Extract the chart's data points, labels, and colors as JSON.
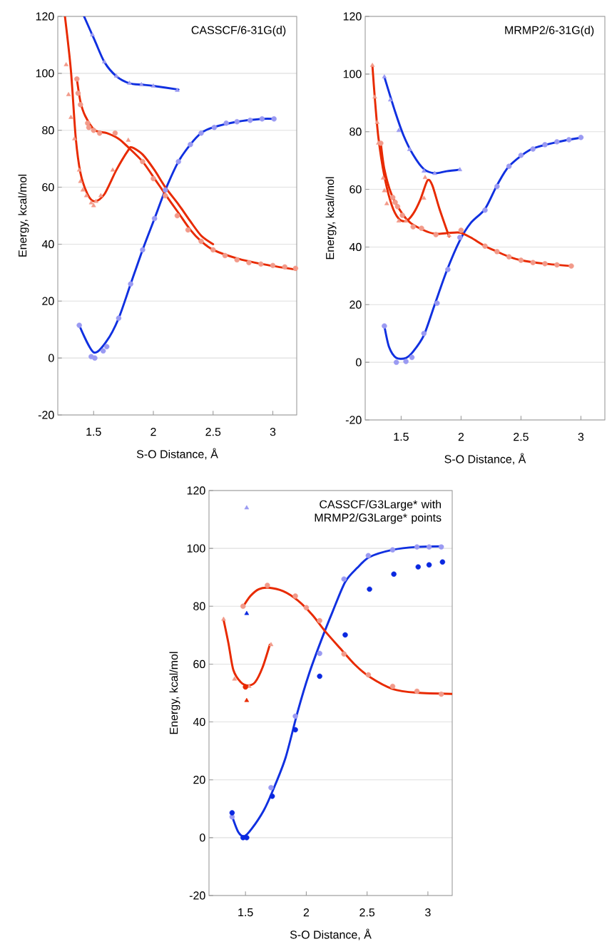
{
  "chart_data": [
    {
      "type": "line",
      "title": "CASSCF/6-31G(d)",
      "xlabel": "S-O Distance, Å",
      "ylabel": "Energy, kcal/mol",
      "xlim": [
        1.2,
        3.2
      ],
      "ylim": [
        -20,
        120
      ],
      "xticks": [
        1.5,
        2,
        2.5,
        3
      ],
      "yticks": [
        -20,
        0,
        20,
        40,
        60,
        80,
        100,
        120
      ],
      "grid": "y",
      "marker": "none",
      "series": [
        {
          "color": "#1030e0",
          "x": [
            1.42,
            1.51,
            1.59,
            1.69,
            1.8,
            1.91,
            2.01,
            2.21
          ],
          "values": [
            120,
            111.5,
            104,
            99,
            96.5,
            96,
            95.5,
            94.3
          ]
        },
        {
          "type": "scatter",
          "marker": "triangle",
          "color": "#9a9af2",
          "x": [
            1.49,
            1.59,
            1.69,
            1.8,
            1.9,
            2.0,
            2.2
          ],
          "values": [
            113.5,
            104,
            99,
            96.5,
            96,
            95.5,
            94
          ]
        },
        {
          "color": "#1030e0",
          "x": [
            1.38,
            1.5,
            1.61,
            1.71,
            1.81,
            1.91,
            2.01,
            2.1,
            2.21,
            2.31,
            2.4,
            2.5,
            2.7,
            2.91,
            3.01
          ],
          "values": [
            11.5,
            2,
            6,
            14,
            26,
            38,
            49,
            59,
            69,
            75,
            79,
            81,
            83,
            84,
            84
          ]
        },
        {
          "type": "scatter",
          "marker": "circle",
          "color": "#9a9af2",
          "x": [
            1.38,
            1.48,
            1.51,
            1.58,
            1.61,
            1.71,
            1.81,
            1.91,
            2.01,
            2.1,
            2.21,
            2.31,
            2.4,
            2.51,
            2.61,
            2.7,
            2.81,
            2.91,
            3.01
          ],
          "values": [
            11.5,
            0.5,
            0,
            2.5,
            4,
            14,
            26,
            38,
            49,
            59,
            69,
            75,
            79,
            81,
            82.5,
            83,
            83.5,
            84,
            84
          ]
        },
        {
          "color": "#e82a00",
          "x": [
            1.26,
            1.31,
            1.35,
            1.39,
            1.45,
            1.51,
            1.59,
            1.69,
            1.79,
            1.82,
            1.91,
            2.01,
            2.1,
            2.21,
            2.31,
            2.4,
            2.5
          ],
          "values": [
            120,
            101,
            77.5,
            65,
            57.5,
            55,
            57.5,
            66,
            73,
            74,
            71.5,
            66,
            60,
            54,
            48,
            43,
            40
          ]
        },
        {
          "type": "scatter",
          "marker": "triangle",
          "color": "#f29a8a",
          "x": [
            1.27,
            1.29,
            1.31,
            1.34,
            1.38,
            1.39,
            1.41,
            1.44,
            1.48,
            1.5,
            1.52,
            1.56,
            1.66,
            1.79
          ],
          "values": [
            103,
            92.5,
            84.5,
            77,
            66,
            62,
            59,
            57,
            54.5,
            53.5,
            55,
            57,
            66,
            76.5
          ]
        },
        {
          "color": "#e82a00",
          "x": [
            1.36,
            1.39,
            1.43,
            1.51,
            1.61,
            1.71,
            1.79,
            1.91,
            2.01,
            2.1,
            2.21,
            2.31,
            2.4,
            2.5,
            2.7,
            2.91,
            3.2
          ],
          "values": [
            98,
            90,
            85,
            80,
            79,
            77,
            74,
            69,
            63,
            57.5,
            51,
            45,
            41,
            38,
            35,
            33,
            31
          ]
        },
        {
          "type": "scatter",
          "marker": "circle",
          "color": "#f29a8a",
          "x": [
            1.36,
            1.37,
            1.39,
            1.45,
            1.46,
            1.5,
            1.55,
            1.68,
            1.91,
            2.0,
            2.1,
            2.2,
            2.29,
            2.4,
            2.5,
            2.6,
            2.7,
            2.8,
            2.9,
            3.0,
            3.1,
            3.19
          ],
          "values": [
            98,
            93,
            89,
            82.5,
            81,
            80,
            79,
            79,
            69,
            63,
            57,
            50,
            45,
            41,
            38,
            36,
            34.5,
            33.5,
            33,
            32.5,
            32,
            31.5
          ]
        }
      ]
    },
    {
      "type": "line",
      "title": "MRMP2/6-31G(d)",
      "xlabel": "S-O Distance, Å",
      "ylabel": "Energy, kcal/mol",
      "xlim": [
        1.2,
        3.2
      ],
      "ylim": [
        -20,
        120
      ],
      "xticks": [
        1.5,
        2,
        2.5,
        3
      ],
      "yticks": [
        -20,
        0,
        20,
        40,
        60,
        80,
        100,
        120
      ],
      "grid": "y",
      "marker": "none",
      "series": [
        {
          "color": "#1030e0",
          "x": [
            1.36,
            1.45,
            1.52,
            1.6,
            1.69,
            1.78,
            1.88,
            1.99
          ],
          "values": [
            99,
            86.9,
            78.7,
            72,
            67,
            65.6,
            66.3,
            66.8
          ]
        },
        {
          "type": "scatter",
          "marker": "triangle",
          "color": "#9a9af2",
          "x": [
            1.36,
            1.41,
            1.48,
            1.57,
            1.69,
            1.78,
            1.99
          ],
          "values": [
            99,
            91,
            80.4,
            73.8,
            66.3,
            65.5,
            66.8
          ]
        },
        {
          "color": "#1030e0",
          "x": [
            1.36,
            1.4,
            1.46,
            1.54,
            1.6,
            1.69,
            1.78,
            1.88,
            1.99,
            2.08,
            2.2,
            2.3,
            2.4,
            2.58,
            2.78,
            3.01
          ],
          "values": [
            12.6,
            5.2,
            1.5,
            1.5,
            3.7,
            9.4,
            20,
            31.7,
            42.3,
            48.3,
            53.2,
            61.4,
            68,
            73.8,
            76.2,
            78
          ]
        },
        {
          "type": "scatter",
          "marker": "circle",
          "color": "#9a9af2",
          "x": [
            1.36,
            1.46,
            1.54,
            1.59,
            1.69,
            1.8,
            1.89,
            1.99,
            2.2,
            2.3,
            2.4,
            2.5,
            2.6,
            2.7,
            2.8,
            2.9,
            3.0
          ],
          "values": [
            12.6,
            0,
            0.3,
            1.7,
            10,
            20.5,
            32.2,
            43.3,
            52.8,
            61,
            68,
            71.8,
            74,
            75.5,
            76.5,
            77.2,
            78
          ]
        },
        {
          "color": "#e82a00",
          "x": [
            1.26,
            1.28,
            1.31,
            1.36,
            1.42,
            1.48,
            1.54,
            1.6,
            1.66,
            1.72,
            1.76,
            1.82,
            1.9
          ],
          "values": [
            103,
            91.8,
            78,
            64.6,
            54.7,
            49.8,
            49,
            51.5,
            56.4,
            63.1,
            61.4,
            53.2,
            43.6
          ]
        },
        {
          "type": "scatter",
          "marker": "triangle",
          "color": "#f29a8a",
          "x": [
            1.26,
            1.28,
            1.3,
            1.31,
            1.35,
            1.36,
            1.38,
            1.48,
            1.54,
            1.69,
            1.7,
            1.9
          ],
          "values": [
            103,
            92,
            83.2,
            76,
            63.9,
            59.5,
            55,
            49,
            49,
            56.9,
            64.1,
            44
          ]
        },
        {
          "color": "#e82a00",
          "x": [
            1.33,
            1.36,
            1.42,
            1.51,
            1.58,
            1.69,
            1.78,
            1.88,
            1.99,
            2.08,
            2.2,
            2.3,
            2.4,
            2.5,
            2.7,
            2.92
          ],
          "values": [
            76.2,
            67,
            58.2,
            51.5,
            48.3,
            45.8,
            44.6,
            44.8,
            45,
            43.3,
            40.3,
            38.4,
            36.6,
            35.4,
            34.2,
            33.4
          ]
        },
        {
          "type": "scatter",
          "marker": "circle",
          "color": "#f29a8a",
          "x": [
            1.33,
            1.43,
            1.45,
            1.47,
            1.51,
            1.6,
            1.67,
            1.79,
            2.0,
            2.2,
            2.3,
            2.4,
            2.5,
            2.6,
            2.7,
            2.8,
            2.92
          ],
          "values": [
            76,
            57.2,
            55.5,
            54,
            51,
            47,
            46.5,
            44.3,
            45.8,
            40.3,
            38.4,
            36.6,
            35.4,
            34.6,
            34.2,
            33.8,
            33.4
          ]
        }
      ]
    },
    {
      "type": "line",
      "title": "CASSCF/G3Large* with MRMP2/G3Large* points",
      "xlabel": "S-O Distance, Å",
      "ylabel": "Energy, kcal/mol",
      "xlim": [
        1.2,
        3.2
      ],
      "ylim": [
        -20,
        120
      ],
      "xticks": [
        1.5,
        2,
        2.5,
        3
      ],
      "yticks": [
        -20,
        0,
        20,
        40,
        60,
        80,
        100,
        120
      ],
      "grid": "y",
      "marker": "none",
      "series": [
        {
          "color": "#1030e0",
          "x": [
            1.39,
            1.44,
            1.49,
            1.55,
            1.65,
            1.73,
            1.83,
            1.93,
            2.02,
            2.12,
            2.22,
            2.32,
            2.42,
            2.52,
            2.71,
            2.91,
            3.12
          ],
          "values": [
            7.4,
            2,
            0.5,
            3,
            9.4,
            16.8,
            27.7,
            43.7,
            56.3,
            67.9,
            78.5,
            88.4,
            93.3,
            97,
            99.5,
            100.5,
            100.7
          ]
        },
        {
          "type": "scatter",
          "marker": "circle",
          "color": "#9a9af2",
          "x": [
            1.39,
            1.71,
            1.91,
            2.11,
            2.31,
            2.51,
            2.71,
            2.91,
            3.01,
            3.11
          ],
          "values": [
            7.2,
            17.3,
            42,
            63.7,
            89.4,
            97.5,
            99.5,
            100.5,
            100.5,
            100.5
          ]
        },
        {
          "type": "scatter",
          "marker": "circle",
          "color": "#0a28e0",
          "x": [
            1.39,
            1.48,
            1.51,
            1.72,
            1.91,
            2.11,
            2.32,
            2.52,
            2.72,
            2.92,
            3.01,
            3.12
          ],
          "values": [
            8.6,
            0,
            0,
            14.3,
            37.3,
            55.8,
            70.1,
            85.9,
            91.1,
            93.6,
            94.3,
            95.3
          ]
        },
        {
          "type": "scatter",
          "marker": "triangle",
          "color": "#0a28e0",
          "x": [
            1.51
          ],
          "values": [
            77.5
          ]
        },
        {
          "type": "scatter",
          "marker": "triangle",
          "color": "#9a9af2",
          "x": [
            1.51
          ],
          "values": [
            114
          ]
        },
        {
          "color": "#e82a00",
          "x": [
            1.48,
            1.54,
            1.61,
            1.69,
            1.81,
            1.93,
            2.05,
            2.16,
            2.28,
            2.4,
            2.52,
            2.71,
            2.91,
            3.2
          ],
          "values": [
            79.8,
            83.5,
            85.9,
            86.4,
            85.2,
            82,
            77,
            71.1,
            65.4,
            59.8,
            55.6,
            51.4,
            50.1,
            49.7
          ]
        },
        {
          "type": "scatter",
          "marker": "circle",
          "color": "#f29a8a",
          "x": [
            1.48,
            1.68,
            1.91,
            2.0,
            2.11,
            2.31,
            2.51,
            2.71,
            2.91,
            3.11
          ],
          "values": [
            80,
            87.2,
            83.5,
            79.5,
            75,
            63.5,
            56.3,
            52.3,
            50.6,
            49.6
          ]
        },
        {
          "color": "#e82a00",
          "x": [
            1.32,
            1.36,
            1.4,
            1.46,
            1.52,
            1.58,
            1.64,
            1.7
          ],
          "values": [
            75.3,
            67.2,
            58,
            53.8,
            52.6,
            53.8,
            58.8,
            66.7
          ]
        },
        {
          "type": "scatter",
          "marker": "triangle",
          "color": "#f29a8a",
          "x": [
            1.32,
            1.41,
            1.53,
            1.71
          ],
          "values": [
            75.5,
            54.8,
            52.3,
            66.7
          ]
        },
        {
          "type": "scatter",
          "marker": "circle",
          "color": "#e82a00",
          "x": [
            1.5
          ],
          "values": [
            52.1
          ]
        },
        {
          "type": "scatter",
          "marker": "triangle",
          "color": "#e82a00",
          "x": [
            1.51
          ],
          "values": [
            47.4
          ]
        }
      ]
    }
  ]
}
